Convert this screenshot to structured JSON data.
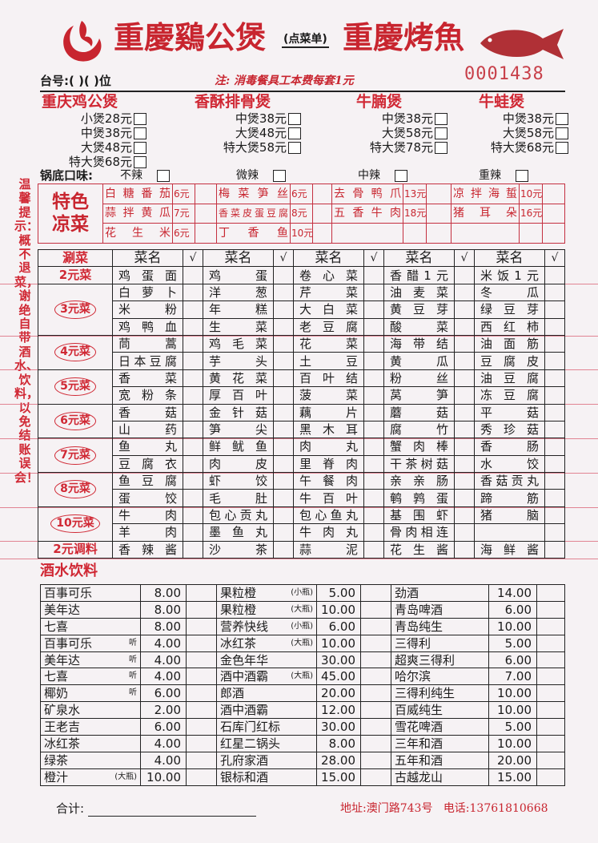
{
  "header": {
    "title_left": "重慶鷄公煲",
    "order_tag": "(点菜单)",
    "title_right": "重慶烤魚",
    "serial_no": "0001438",
    "table_no": "台号:(        )(      )位",
    "note": "注: 消毒餐具工本费每套1元",
    "logo_icon": "rooster-logo-icon",
    "fish_icon": "fish-illustration-icon"
  },
  "pots": [
    {
      "name": "重庆鸡公煲",
      "options": [
        "小煲28元",
        "中煲38元",
        "大煲48元",
        "特大煲68元"
      ]
    },
    {
      "name": "香酥排骨煲",
      "options": [
        "中煲38元",
        "大煲48元",
        "特大煲58元"
      ]
    },
    {
      "name": "牛腩煲",
      "options": [
        "中煲38元",
        "大煲58元",
        "特大煲78元"
      ]
    },
    {
      "name": "牛蛙煲",
      "options": [
        "中煲38元",
        "大煲58元",
        "特大煲68元"
      ]
    }
  ],
  "spice": {
    "label": "锅底口味:",
    "options": [
      "不辣",
      "微辣",
      "中辣",
      "重辣"
    ]
  },
  "side_note": "温馨提示：概不退菜，谢绝自带酒水、饮料，以免结账误会！",
  "cold_dishes": {
    "label_line1": "特色",
    "label_line2": "凉菜",
    "rows": [
      [
        {
          "name": "白糖番茄",
          "price": "6元"
        },
        {
          "name": "梅菜笋丝",
          "price": "6元"
        },
        {
          "name": "去骨鸭爪",
          "price": "13元"
        },
        {
          "name": "凉拌海蜇",
          "price": "10元"
        }
      ],
      [
        {
          "name": "蒜拌黄瓜",
          "price": "7元"
        },
        {
          "name": "香菜皮蛋豆腐",
          "price": "8元"
        },
        {
          "name": "五香牛肉",
          "price": "18元"
        },
        {
          "name": "猪耳朵",
          "price": "16元"
        }
      ],
      [
        {
          "name": "花生米",
          "price": "6元"
        },
        {
          "name": "丁香鱼",
          "price": "10元"
        },
        {
          "name": "",
          "price": ""
        },
        {
          "name": "",
          "price": ""
        }
      ]
    ]
  },
  "vegetables": {
    "corner": "涮菜",
    "col_header": "菜名",
    "check_header": "√",
    "groups": [
      {
        "label": "2元菜",
        "circled": false,
        "rows": [
          [
            "鸡蛋面",
            "鸡蛋",
            "卷心菜",
            "香醋1元",
            "米饭1元"
          ]
        ]
      },
      {
        "label": "3元菜",
        "circled": true,
        "rows": [
          [
            "白萝卜",
            "洋葱",
            "芹菜",
            "油麦菜",
            "冬瓜"
          ],
          [
            "米粉",
            "年糕",
            "大白菜",
            "黄豆芽",
            "绿豆芽"
          ],
          [
            "鸡鸭血",
            "生菜",
            "老豆腐",
            "酸菜",
            "西红柿"
          ]
        ]
      },
      {
        "label": "4元菜",
        "circled": true,
        "rows": [
          [
            "茼蒿",
            "鸡毛菜",
            "花菜",
            "海带结",
            "油面筋"
          ],
          [
            "日本豆腐",
            "芋头",
            "土豆",
            "黄瓜",
            "豆腐皮"
          ]
        ]
      },
      {
        "label": "5元菜",
        "circled": true,
        "rows": [
          [
            "香菜",
            "黄花菜",
            "百叶结",
            "粉丝",
            "油豆腐"
          ],
          [
            "宽粉条",
            "厚百叶",
            "菠菜",
            "莴笋",
            "冻豆腐"
          ]
        ]
      },
      {
        "label": "6元菜",
        "circled": true,
        "rows": [
          [
            "香菇",
            "金针菇",
            "藕片",
            "蘑菇",
            "平菇"
          ],
          [
            "山药",
            "笋尖",
            "黑木耳",
            "腐竹",
            "秀珍菇"
          ]
        ]
      },
      {
        "label": "7元菜",
        "circled": true,
        "rows": [
          [
            "鱼丸",
            "鲜鱿鱼",
            "肉丸",
            "蟹肉棒",
            "香肠"
          ],
          [
            "豆腐衣",
            "肉皮",
            "里脊肉",
            "干茶树菇",
            "水饺"
          ]
        ]
      },
      {
        "label": "8元菜",
        "circled": true,
        "rows": [
          [
            "鱼豆腐",
            "虾饺",
            "午餐肉",
            "亲亲肠",
            "香菇贡丸"
          ],
          [
            "蛋饺",
            "毛肚",
            "牛百叶",
            "鹌鹑蛋",
            "蹄筋"
          ]
        ]
      },
      {
        "label": "10元菜",
        "circled": true,
        "rows": [
          [
            "牛肉",
            "包心贡丸",
            "包心鱼丸",
            "基围虾",
            "猪脑"
          ],
          [
            "羊肉",
            "墨鱼丸",
            "牛肉丸",
            "骨肉相连",
            ""
          ]
        ]
      },
      {
        "label": "2元调料",
        "circled": false,
        "rows": [
          [
            "香辣酱",
            "沙茶",
            "蒜泥",
            "花生酱",
            "海鲜酱"
          ]
        ]
      }
    ]
  },
  "drinks": {
    "title": "酒水饮料",
    "columns": [
      [
        {
          "name": "百事可乐",
          "note": "",
          "price": "8.00"
        },
        {
          "name": "美年达",
          "note": "",
          "price": "8.00"
        },
        {
          "name": "七喜",
          "note": "",
          "price": "8.00"
        },
        {
          "name": "百事可乐",
          "note": "听",
          "price": "4.00"
        },
        {
          "name": "美年达",
          "note": "听",
          "price": "4.00"
        },
        {
          "name": "七喜",
          "note": "听",
          "price": "4.00"
        },
        {
          "name": "椰奶",
          "note": "听",
          "price": "6.00"
        },
        {
          "name": "矿泉水",
          "note": "",
          "price": "2.00"
        },
        {
          "name": "王老吉",
          "note": "",
          "price": "6.00"
        },
        {
          "name": "冰红茶",
          "note": "",
          "price": "4.00"
        },
        {
          "name": "绿茶",
          "note": "",
          "price": "4.00"
        },
        {
          "name": "橙汁",
          "note": "(大瓶)",
          "price": "10.00"
        }
      ],
      [
        {
          "name": "果粒橙",
          "note": "(小瓶)",
          "price": "5.00"
        },
        {
          "name": "果粒橙",
          "note": "(大瓶)",
          "price": "10.00"
        },
        {
          "name": "营养快线",
          "note": "(小瓶)",
          "price": "6.00"
        },
        {
          "name": "冰红茶",
          "note": "(大瓶)",
          "price": "10.00"
        },
        {
          "name": "金色年华",
          "note": "",
          "price": "30.00"
        },
        {
          "name": "酒中酒霸",
          "note": "(大瓶)",
          "price": "45.00"
        },
        {
          "name": "郎酒",
          "note": "",
          "price": "20.00"
        },
        {
          "name": "酒中酒霸",
          "note": "",
          "price": "12.00"
        },
        {
          "name": "石库门红标",
          "note": "",
          "price": "30.00"
        },
        {
          "name": "红星二锅头",
          "note": "",
          "price": "8.00"
        },
        {
          "name": "孔府家酒",
          "note": "",
          "price": "28.00"
        },
        {
          "name": "银标和酒",
          "note": "",
          "price": "15.00"
        }
      ],
      [
        {
          "name": "劲酒",
          "note": "",
          "price": "14.00"
        },
        {
          "name": "青岛啤酒",
          "note": "",
          "price": "6.00"
        },
        {
          "name": "青岛纯生",
          "note": "",
          "price": "10.00"
        },
        {
          "name": "三得利",
          "note": "",
          "price": "5.00"
        },
        {
          "name": "超爽三得利",
          "note": "",
          "price": "6.00"
        },
        {
          "name": "哈尔滨",
          "note": "",
          "price": "7.00"
        },
        {
          "name": "三得利纯生",
          "note": "",
          "price": "10.00"
        },
        {
          "name": "百威纯生",
          "note": "",
          "price": "10.00"
        },
        {
          "name": "雪花啤酒",
          "note": "",
          "price": "5.00"
        },
        {
          "name": "三年和酒",
          "note": "",
          "price": "10.00"
        },
        {
          "name": "五年和酒",
          "note": "",
          "price": "20.00"
        },
        {
          "name": "古越龙山",
          "note": "",
          "price": "15.00"
        }
      ]
    ]
  },
  "footer": {
    "total_label": "合计:",
    "address": "地址:澳门路743号",
    "phone": "电话:13761810668"
  },
  "colors": {
    "brand_red": "#c8252f",
    "paper": "#f6f2f4",
    "ink": "#1a1a1a"
  }
}
